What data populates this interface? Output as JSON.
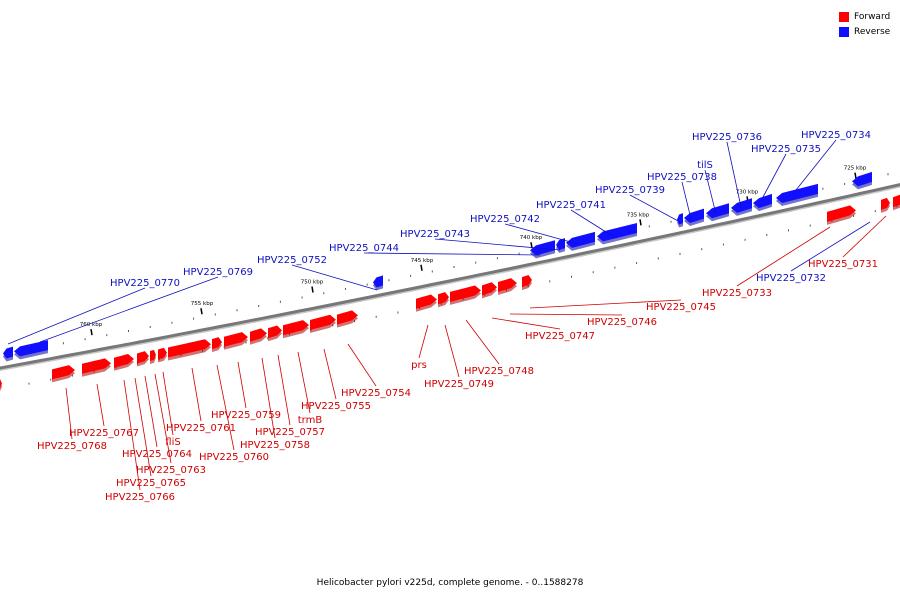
{
  "colors": {
    "forward": "#ff0000",
    "reverse": "#1010ff",
    "forward_edge": "#aa0000",
    "reverse_edge": "#00009a",
    "axis": "#777777"
  },
  "legend": {
    "forward": "Forward",
    "reverse": "Reverse"
  },
  "caption": "Helicobacter pylori v225d, complete genome. - 0..1588278",
  "ticks": [
    "725 kbp",
    "730 kbp",
    "735 kbp",
    "740 kbp",
    "745 kbp",
    "750 kbp",
    "755 kbp",
    "760 kbp"
  ],
  "reverse_genes": [
    "HPV225_0734",
    "HPV225_0735",
    "HPV225_0736",
    "tilS",
    "HPV225_0738",
    "HPV225_0739",
    "HPV225_0741",
    "HPV225_0742",
    "HPV225_0743",
    "HPV225_0744",
    "HPV225_0752",
    "HPV225_0769",
    "HPV225_0770",
    "HPV225_0732"
  ],
  "forward_genes": [
    "HPV225_0731",
    "HPV225_0733",
    "HPV225_0745",
    "HPV225_0746",
    "HPV225_0747",
    "HPV225_0748",
    "HPV225_0749",
    "prs",
    "HPV225_0754",
    "HPV225_0755",
    "trmB",
    "HPV225_0757",
    "HPV225_0758",
    "HPV225_0759",
    "HPV225_0760",
    "HPV225_0761",
    "fliS",
    "HPV225_0763",
    "HPV225_0764",
    "HPV225_0765",
    "HPV225_0766",
    "HPV225_0767",
    "HPV225_0768"
  ]
}
